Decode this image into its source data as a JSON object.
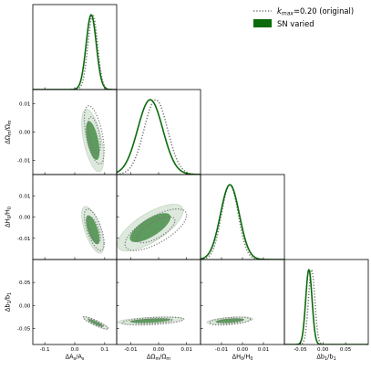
{
  "chart_data": {
    "type": "triangle",
    "legend": {
      "placement": "top-right",
      "entries": [
        {
          "label_main": "k",
          "label_sub": "max",
          "label_rest": "=0.20 (original)",
          "style": "dotted",
          "color": "#777777"
        },
        {
          "label": "SN varied",
          "style": "filled",
          "color": "#0b6b0b"
        }
      ]
    },
    "params": [
      {
        "label_pre": "ΔA",
        "label_sub": "s",
        "label_mid": "/A",
        "label_sub2": "s",
        "range": [
          -0.14,
          0.14
        ],
        "ticks": [
          -0.1,
          0.0,
          0.1
        ],
        "tick_labels": [
          "-0.1",
          "0.0",
          "0.1"
        ]
      },
      {
        "label_pre": "ΔΩ",
        "label_sub": "m",
        "label_mid": "/Ω",
        "label_sub2": "m",
        "range": [
          -0.015,
          0.015
        ],
        "ticks": [
          -0.01,
          0.0,
          0.01
        ],
        "tick_labels": [
          "-0.01",
          "0.00",
          "0.01"
        ]
      },
      {
        "label_pre": "ΔH",
        "label_sub": "0",
        "label_mid": "/H",
        "label_sub2": "0",
        "range": [
          -0.02,
          0.02
        ],
        "ticks": [
          -0.01,
          0.0,
          0.01
        ],
        "tick_labels": [
          "-0.01",
          "0.00",
          "0.01"
        ]
      },
      {
        "label_pre": "Δb",
        "label_sub": "1",
        "label_mid": "/b",
        "label_sub2": "1",
        "range": [
          -0.085,
          0.1
        ],
        "ticks": [
          -0.05,
          0.0,
          0.05
        ],
        "tick_labels": [
          "-0.05",
          "0.00",
          "0.05"
        ]
      }
    ],
    "marginals": [
      {
        "param": 0,
        "original": {
          "mean": 0.06,
          "sigma": 0.016
        },
        "varied": {
          "mean": 0.055,
          "sigma": 0.017
        }
      },
      {
        "param": 1,
        "original": {
          "mean": -0.001,
          "sigma": 0.0042
        },
        "varied": {
          "mean": -0.003,
          "sigma": 0.0045
        }
      },
      {
        "param": 2,
        "original": {
          "mean": -0.006,
          "sigma": 0.004
        },
        "varied": {
          "mean": -0.006,
          "sigma": 0.0045
        }
      },
      {
        "param": 3,
        "original": {
          "mean": -0.025,
          "sigma": 0.007
        },
        "varied": {
          "mean": -0.031,
          "sigma": 0.007
        }
      }
    ],
    "contours": [
      {
        "x": 0,
        "y": 1,
        "original": {
          "cx": 0.065,
          "cy": -0.001,
          "sx": 0.0135,
          "sy": 0.0042,
          "rho": -0.55
        },
        "varied": {
          "cx": 0.06,
          "cy": -0.003,
          "sx": 0.015,
          "sy": 0.0045,
          "rho": -0.55
        }
      },
      {
        "x": 0,
        "y": 2,
        "original": {
          "cx": 0.065,
          "cy": -0.006,
          "sx": 0.0135,
          "sy": 0.004,
          "rho": -0.65
        },
        "varied": {
          "cx": 0.06,
          "cy": -0.006,
          "sx": 0.015,
          "sy": 0.0045,
          "rho": -0.65
        }
      },
      {
        "x": 1,
        "y": 2,
        "original": {
          "cx": -0.001,
          "cy": -0.006,
          "sx": 0.0045,
          "sy": 0.004,
          "rho": 0.7
        },
        "varied": {
          "cx": -0.003,
          "cy": -0.005,
          "sx": 0.0048,
          "sy": 0.0045,
          "rho": 0.72
        }
      },
      {
        "x": 0,
        "y": 3,
        "original": {
          "cx": 0.07,
          "cy": -0.038,
          "sx": 0.017,
          "sy": 0.0055,
          "rho": -0.9
        },
        "varied": {
          "cx": 0.07,
          "cy": -0.038,
          "sx": 0.017,
          "sy": 0.0055,
          "rho": -0.9
        }
      },
      {
        "x": 1,
        "y": 3,
        "original": {
          "cx": -0.002,
          "cy": -0.034,
          "sx": 0.0045,
          "sy": 0.0035,
          "rho": 0.45
        },
        "varied": {
          "cx": -0.003,
          "cy": -0.033,
          "sx": 0.0048,
          "sy": 0.0033,
          "rho": 0.45
        }
      },
      {
        "x": 2,
        "y": 3,
        "original": {
          "cx": -0.006,
          "cy": -0.034,
          "sx": 0.004,
          "sy": 0.0035,
          "rho": 0.45
        },
        "varied": {
          "cx": -0.006,
          "cy": -0.033,
          "sx": 0.0045,
          "sy": 0.0033,
          "rho": 0.45
        }
      }
    ]
  }
}
